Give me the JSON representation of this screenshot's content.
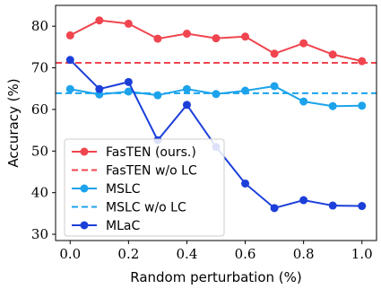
{
  "chart_data": {
    "type": "line",
    "xlabel": "Random perturbation (%)",
    "ylabel": "Accuracy (%)",
    "xlim": [
      -0.05,
      1.05
    ],
    "ylim": [
      28.5,
      85
    ],
    "xticks": [
      0.0,
      0.2,
      0.4,
      0.6,
      0.8,
      1.0
    ],
    "xtick_labels": [
      "0.0",
      "0.2",
      "0.4",
      "0.6",
      "0.8",
      "1.0"
    ],
    "yticks": [
      30,
      40,
      50,
      60,
      70,
      80
    ],
    "ytick_labels": [
      "30",
      "40",
      "50",
      "60",
      "70",
      "80"
    ],
    "grid": false,
    "legend_position": "bottom-left",
    "x": [
      0.0,
      0.1,
      0.2,
      0.3,
      0.4,
      0.5,
      0.6,
      0.7,
      0.8,
      0.9,
      1.0
    ],
    "series": [
      {
        "name": "FasTEN (ours.)",
        "style": "solid-marker",
        "color": "#f0454f",
        "values": [
          77.8,
          81.4,
          80.6,
          77.0,
          78.2,
          77.1,
          77.5,
          73.4,
          75.9,
          73.2,
          71.6
        ]
      },
      {
        "name": "FasTEN w/o LC",
        "style": "dashed",
        "color": "#f0454f",
        "values": [
          71.2,
          71.2,
          71.2,
          71.2,
          71.2,
          71.2,
          71.2,
          71.2,
          71.2,
          71.2,
          71.2
        ]
      },
      {
        "name": "MSLC",
        "style": "solid-marker",
        "color": "#1ca3ec",
        "values": [
          64.9,
          63.6,
          64.3,
          63.4,
          64.9,
          63.7,
          64.5,
          65.6,
          61.9,
          60.8,
          60.9
        ]
      },
      {
        "name": "MSLC w/o LC",
        "style": "dashed",
        "color": "#1ca3ec",
        "values": [
          63.9,
          63.9,
          63.9,
          63.9,
          63.9,
          63.9,
          63.9,
          63.9,
          63.9,
          63.9,
          63.9
        ]
      },
      {
        "name": "MLaC",
        "style": "solid-marker",
        "color": "#1c3fd9",
        "values": [
          71.9,
          64.9,
          66.6,
          52.6,
          61.1,
          51.0,
          42.2,
          36.3,
          38.2,
          36.9,
          36.8
        ]
      }
    ]
  }
}
